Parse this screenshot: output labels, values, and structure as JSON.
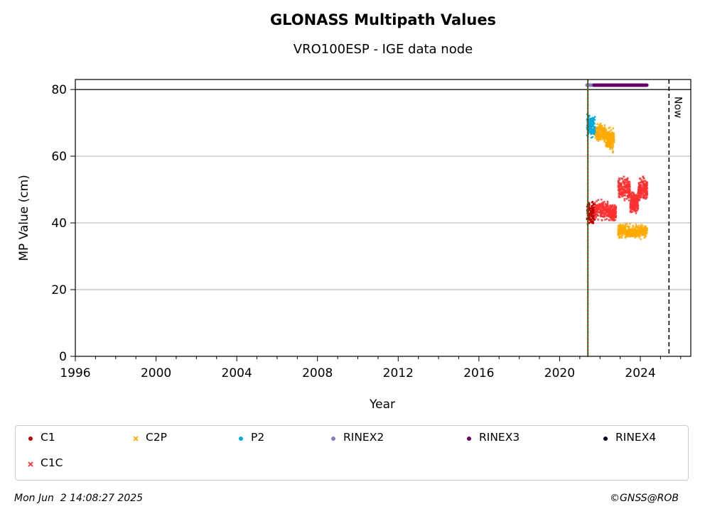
{
  "chart_data": {
    "type": "scatter",
    "title": "GLONASS Multipath Values",
    "subtitle": "VRO100ESP - IGE data node",
    "xlabel": "Year",
    "ylabel": "MP Value (cm)",
    "xlim": [
      1996,
      2026.5
    ],
    "ylim": [
      0,
      83
    ],
    "xticks": [
      1996,
      2000,
      2004,
      2008,
      2012,
      2016,
      2020,
      2024
    ],
    "yticks": [
      0,
      20,
      40,
      60,
      80
    ],
    "grid": "horizontal",
    "reference_lines": {
      "top_line_y": 80,
      "start_line_x": 2021.4,
      "now_line_x": 2025.42,
      "now_label": "Now"
    },
    "series": [
      {
        "name": "C1",
        "color": "#c00000",
        "marker": "dot",
        "clusters": [
          {
            "x": [
              2021.35,
              2021.75
            ],
            "y_center": 43,
            "y_spread": 3
          }
        ]
      },
      {
        "name": "C1C",
        "color": "#ff3030",
        "marker": "x",
        "clusters": [
          {
            "x": [
              2021.75,
              2022.4
            ],
            "y_center": 44,
            "y_spread": 2.5
          },
          {
            "x": [
              2022.4,
              2022.8
            ],
            "y_center": 43,
            "y_spread": 2
          },
          {
            "x": [
              2022.9,
              2023.5
            ],
            "y_center": 50,
            "y_spread": 3
          },
          {
            "x": [
              2023.5,
              2023.9
            ],
            "y_center": 46,
            "y_spread": 3
          },
          {
            "x": [
              2023.9,
              2024.35
            ],
            "y_center": 50,
            "y_spread": 3
          }
        ]
      },
      {
        "name": "C2P",
        "color": "#ffaa00",
        "marker": "x",
        "clusters": [
          {
            "x": [
              2021.75,
              2022.3
            ],
            "y_center": 67,
            "y_spread": 2.5
          },
          {
            "x": [
              2022.3,
              2022.7
            ],
            "y_center": 65,
            "y_spread": 3
          },
          {
            "x": [
              2022.9,
              2023.5
            ],
            "y_center": 37.5,
            "y_spread": 1.8
          },
          {
            "x": [
              2023.5,
              2024.35
            ],
            "y_center": 37.5,
            "y_spread": 1.8
          }
        ]
      },
      {
        "name": "P2",
        "color": "#00aadd",
        "marker": "dot",
        "clusters": [
          {
            "x": [
              2021.35,
              2021.75
            ],
            "y_center": 69,
            "y_spread": 3
          }
        ]
      },
      {
        "name": "RINEX2",
        "color": "#7f7fbf",
        "marker": "dot",
        "clusters": [
          {
            "x": [
              2021.35,
              2021.7
            ],
            "y_center": 81.3,
            "y_spread": 0
          }
        ]
      },
      {
        "name": "RINEX3",
        "color": "#660066",
        "marker": "dot",
        "clusters": [
          {
            "x": [
              2021.7,
              2024.35
            ],
            "y_center": 81.3,
            "y_spread": 0
          }
        ]
      },
      {
        "name": "RINEX4",
        "color": "#110022",
        "marker": "dot",
        "clusters": []
      }
    ]
  },
  "legend": {
    "items": [
      {
        "label": "C1",
        "color": "#c00000",
        "marker": "dot"
      },
      {
        "label": "C2P",
        "color": "#ffaa00",
        "marker": "x"
      },
      {
        "label": "P2",
        "color": "#00aadd",
        "marker": "dot"
      },
      {
        "label": "RINEX2",
        "color": "#7f7fbf",
        "marker": "dot"
      },
      {
        "label": "RINEX3",
        "color": "#660066",
        "marker": "dot"
      },
      {
        "label": "RINEX4",
        "color": "#110022",
        "marker": "dot"
      },
      {
        "label": "C1C",
        "color": "#ff3030",
        "marker": "x"
      }
    ]
  },
  "footer": {
    "timestamp": "Mon Jun  2 14:08:27 2025",
    "credit": "©GNSS@ROB"
  }
}
